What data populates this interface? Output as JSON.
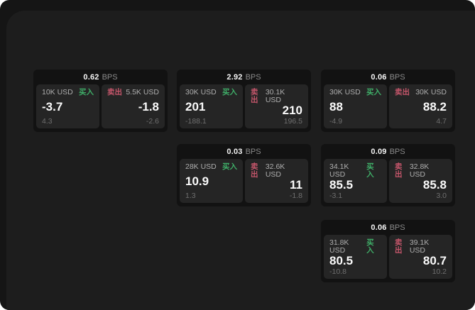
{
  "colors": {
    "buy_green": "#3fae68",
    "sell_red": "#c5566b",
    "frame_bg": "#151515",
    "panel_bg": "#1d1d1d",
    "card_bg": "#121212",
    "tile_bg": "#252525"
  },
  "cards": [
    {
      "bps": "0.62",
      "unit": "BPS",
      "buy": {
        "amount": "10K USD",
        "label": "买入",
        "value": "-3.7",
        "delta": "4.3"
      },
      "sell": {
        "label": "卖出",
        "amount": "5.5K USD",
        "value": "-1.8",
        "delta": "-2.6"
      }
    },
    {
      "bps": "2.92",
      "unit": "BPS",
      "buy": {
        "amount": "30K USD",
        "label": "买入",
        "value": "201",
        "delta": "-188.1"
      },
      "sell": {
        "label": "卖出",
        "amount": "30.1K USD",
        "value": "210",
        "delta": "196.5"
      }
    },
    {
      "bps": "0.06",
      "unit": "BPS",
      "buy": {
        "amount": "30K USD",
        "label": "买入",
        "value": "88",
        "delta": "-4.9"
      },
      "sell": {
        "label": "卖出",
        "amount": "30K USD",
        "value": "88.2",
        "delta": "4.7"
      }
    },
    {
      "bps": "0.03",
      "unit": "BPS",
      "buy": {
        "amount": "28K USD",
        "label": "买入",
        "value": "10.9",
        "delta": "1.3"
      },
      "sell": {
        "label": "卖出",
        "amount": "32.6K USD",
        "value": "11",
        "delta": "-1.8"
      }
    },
    {
      "bps": "0.09",
      "unit": "BPS",
      "buy": {
        "amount": "34.1K USD",
        "label": "买入",
        "value": "85.5",
        "delta": "-3.1"
      },
      "sell": {
        "label": "卖出",
        "amount": "32.8K USD",
        "value": "85.8",
        "delta": "3.0"
      }
    },
    {
      "bps": "0.06",
      "unit": "BPS",
      "buy": {
        "amount": "31.8K USD",
        "label": "买入",
        "value": "80.5",
        "delta": "-10.8"
      },
      "sell": {
        "label": "卖出",
        "amount": "39.1K USD",
        "value": "80.7",
        "delta": "10.2"
      }
    }
  ]
}
